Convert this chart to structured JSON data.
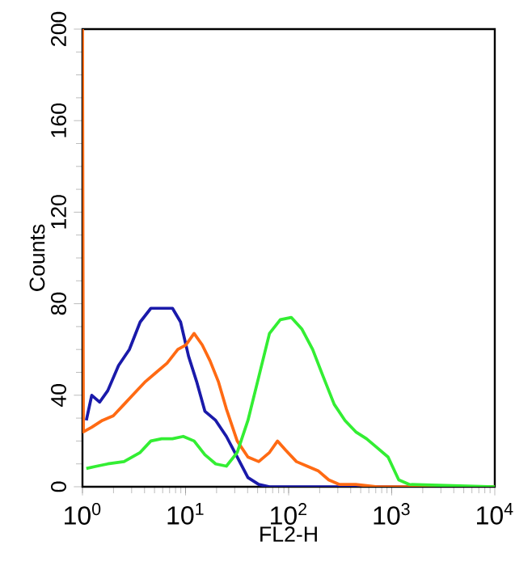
{
  "chart_data": {
    "type": "line",
    "xlabel": "FL2-H",
    "ylabel": "Counts",
    "log": "x",
    "marker": "none",
    "line_style": "solid",
    "xlim": [
      1,
      10000
    ],
    "ylim": [
      0,
      200
    ],
    "xticks": [
      {
        "value": 1,
        "label": "10$^{0}$"
      },
      {
        "value": 10,
        "label": "10$^{1}$"
      },
      {
        "value": 100,
        "label": "10$^{2}$"
      },
      {
        "value": 1000,
        "label": "10$^{3}$"
      },
      {
        "value": 10000,
        "label": "10$^{4}$"
      }
    ],
    "yticks": [
      0,
      40,
      80,
      120,
      160,
      200
    ],
    "series": [
      {
        "color": "#1a1aaa",
        "x": [
          1.09,
          1.23,
          1.47,
          1.76,
          2.24,
          2.85,
          3.63,
          4.61,
          5.87,
          7.47,
          8.95,
          10.7,
          12.8,
          15.4,
          19.6,
          24.9,
          31.7,
          40.3,
          51.3,
          65.2,
          217,
          10000
        ],
        "values": [
          29,
          40,
          37,
          42,
          53,
          60,
          72,
          78,
          78,
          78,
          72,
          57,
          46,
          33,
          29,
          22,
          13,
          4,
          1,
          0,
          0,
          0
        ]
      },
      {
        "color": "#ff6a13",
        "x": [
          1,
          1.02,
          1.23,
          1.56,
          1.99,
          2.53,
          3.21,
          4.09,
          5.2,
          6.62,
          8.42,
          10.1,
          12.1,
          14.5,
          17.3,
          20.8,
          24.9,
          31.7,
          40.3,
          51.3,
          65.2,
          78.1,
          93.6,
          119,
          151,
          193,
          245,
          312,
          448,
          725,
          10000
        ],
        "values": [
          200,
          24,
          26,
          29,
          31,
          36,
          41,
          46,
          50,
          54,
          60,
          62,
          67,
          62,
          55,
          46,
          34,
          20,
          13,
          11,
          15,
          20,
          16,
          11,
          9,
          7,
          3,
          1,
          1,
          0,
          0
        ]
      },
      {
        "color": "#33ee33",
        "x": [
          1.09,
          1.38,
          1.76,
          2.53,
          3.63,
          4.61,
          5.87,
          7.47,
          9.5,
          12.1,
          15.4,
          19.6,
          24.9,
          31.7,
          40.3,
          51.3,
          65.2,
          83,
          106,
          134,
          171,
          217,
          277,
          352,
          448,
          570,
          725,
          922,
          1170,
          1490,
          10000
        ],
        "values": [
          8,
          9,
          10,
          11,
          15,
          20,
          21,
          21,
          22,
          20,
          14,
          10,
          9,
          15,
          29,
          48,
          67,
          73,
          74,
          69,
          60,
          48,
          36,
          29,
          24,
          21,
          17,
          13,
          3,
          1,
          0
        ]
      }
    ]
  }
}
